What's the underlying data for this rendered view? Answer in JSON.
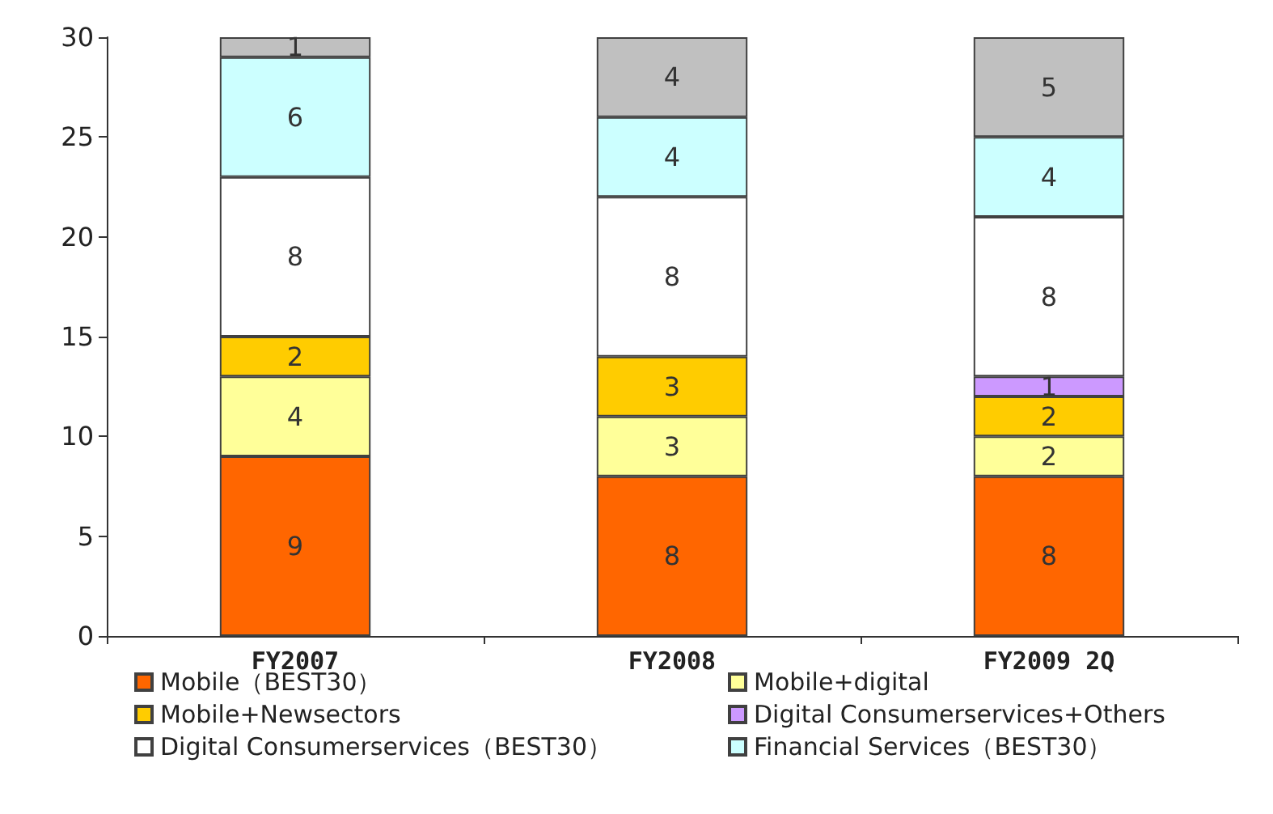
{
  "chart_data": {
    "type": "bar",
    "stacked": true,
    "data_labels": true,
    "legend": "bottom",
    "grid": false,
    "categories": [
      "FY2007",
      "FY2008",
      "FY2009 2Q"
    ],
    "ylim": [
      0,
      30
    ],
    "yticks": [
      0,
      5,
      10,
      15,
      20,
      25,
      30
    ],
    "series": [
      {
        "name": "Mobile（BEST30）",
        "color": "#ff6600",
        "values": [
          9,
          8,
          8
        ]
      },
      {
        "name": "Mobile+digital",
        "color": "#ffff99",
        "values": [
          4,
          3,
          2
        ]
      },
      {
        "name": "Mobile+Newsectors",
        "color": "#ffcc00",
        "values": [
          2,
          3,
          2
        ]
      },
      {
        "name": "Digital Consumerservices+Others",
        "color": "#cc99ff",
        "values": [
          null,
          null,
          1
        ]
      },
      {
        "name": "Digital Consumerservices（BEST30）",
        "color": "#ffffff",
        "values": [
          8,
          8,
          8
        ]
      },
      {
        "name": "Financial Services（BEST30）",
        "color": "#ccffff",
        "values": [
          6,
          4,
          4
        ]
      },
      {
        "color": "#c0c0c0",
        "values": [
          1,
          4,
          5
        ]
      }
    ]
  }
}
